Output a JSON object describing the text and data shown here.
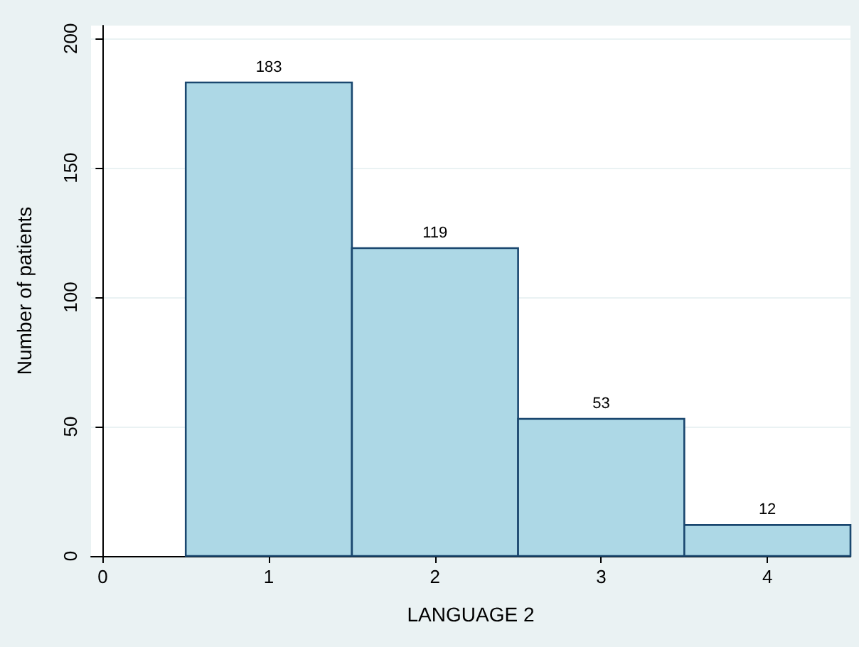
{
  "chart_data": {
    "type": "histogram",
    "xlabel": "LANGUAGE 2",
    "ylabel": "Number of patients",
    "bins": [
      0.5,
      1.5,
      2.5,
      3.5,
      4.5
    ],
    "values": [
      183,
      119,
      53,
      12
    ],
    "color": "#add8e6",
    "data_labels": true,
    "xlim": [
      -0.07,
      4.5
    ],
    "xticks": [
      0,
      1,
      2,
      3,
      4
    ],
    "ylim": [
      0,
      205
    ],
    "yticks": [
      0,
      50,
      100,
      150,
      200
    ],
    "grid": "y"
  }
}
